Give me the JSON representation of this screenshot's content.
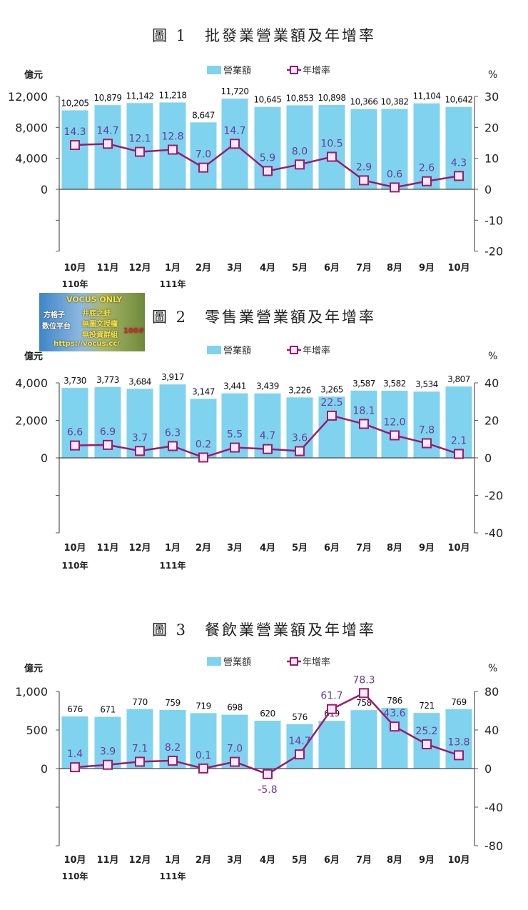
{
  "charts": [
    {
      "title": "圖 1　批發業營業額及年增率",
      "left_unit": "億元",
      "right_unit": "%",
      "legend": {
        "bar": "營業額",
        "line": "年增率"
      },
      "left_ticks": [
        "12,000",
        "8,000",
        "4,000",
        "0"
      ],
      "right_ticks": [
        "30",
        "20",
        "10",
        "0",
        "-10",
        "-20"
      ]
    },
    {
      "title": "圖 2　零售業營業額及年增率",
      "left_unit": "億元",
      "right_unit": "%",
      "legend": {
        "bar": "營業額",
        "line": "年增率"
      },
      "left_ticks": [
        "4,000",
        "2,000",
        "0"
      ],
      "right_ticks": [
        "40",
        "20",
        "0",
        "-20",
        "-40"
      ]
    },
    {
      "title": "圖 3　餐飲業營業額及年增率",
      "left_unit": "億元",
      "right_unit": "%",
      "legend": {
        "bar": "營業額",
        "line": "年增率"
      },
      "left_ticks": [
        "1,000",
        "500",
        "0"
      ],
      "right_ticks": [
        "80",
        "40",
        "0",
        "-40",
        "-80"
      ]
    }
  ],
  "watermark": {
    "lines": [
      "VOCUS ONLY",
      "井底之蛙",
      "無圖文授權",
      "無投資群組",
      "https://vocus.cc/",
      "方格子",
      "数位平台",
      "100#"
    ]
  },
  "colors": {
    "bar": "#7fd3ee",
    "line": "#9b1b6e",
    "marker_fill": "#fde8f3",
    "line_label": "#6a3d9a",
    "axis": "#555555"
  },
  "chart_data": [
    {
      "type": "bar",
      "title": "圖 1 批發業營業額及年增率",
      "categories": [
        "10月",
        "11月",
        "12月",
        "1月",
        "2月",
        "3月",
        "4月",
        "5月",
        "6月",
        "7月",
        "8月",
        "9月",
        "10月"
      ],
      "year_labels": [
        {
          "index": 0,
          "label": "110年"
        },
        {
          "index": 3,
          "label": "111年"
        }
      ],
      "series": [
        {
          "name": "營業額",
          "type": "bar",
          "axis": "left",
          "unit": "億元",
          "values": [
            10205,
            10879,
            11142,
            11218,
            8647,
            11720,
            10645,
            10853,
            10898,
            10366,
            10382,
            11104,
            10642
          ],
          "labels": [
            "10,205",
            "10,879",
            "11,142",
            "11,218",
            "8,647",
            "11,720",
            "10,645",
            "10,853",
            "10,898",
            "10,366",
            "10,382",
            "11,104",
            "10,642"
          ]
        },
        {
          "name": "年增率",
          "type": "line",
          "axis": "right",
          "unit": "%",
          "values": [
            14.3,
            14.7,
            12.1,
            12.8,
            7.0,
            14.7,
            5.9,
            8.0,
            10.5,
            2.9,
            0.6,
            2.6,
            4.3
          ],
          "labels": [
            "14.3",
            "14.7",
            "12.1",
            "12.8",
            "7.0",
            "14.7",
            "5.9",
            "8.0",
            "10.5",
            "2.9",
            "0.6",
            "2.6",
            "4.3"
          ]
        }
      ],
      "ylabel": "億元",
      "y2label": "%",
      "ylim": [
        -8000,
        12000
      ],
      "y2lim": [
        -20,
        30
      ],
      "left_ticks": [
        0,
        4000,
        8000,
        12000
      ],
      "right_ticks": [
        -20,
        -10,
        0,
        10,
        20,
        30
      ],
      "grid": false,
      "legend_position": "top"
    },
    {
      "type": "bar",
      "title": "圖 2 零售業營業額及年增率",
      "categories": [
        "10月",
        "11月",
        "12月",
        "1月",
        "2月",
        "3月",
        "4月",
        "5月",
        "6月",
        "7月",
        "8月",
        "9月",
        "10月"
      ],
      "year_labels": [
        {
          "index": 0,
          "label": "110年"
        },
        {
          "index": 3,
          "label": "111年"
        }
      ],
      "series": [
        {
          "name": "營業額",
          "type": "bar",
          "axis": "left",
          "unit": "億元",
          "values": [
            3730,
            3773,
            3684,
            3917,
            3147,
            3441,
            3439,
            3226,
            3265,
            3587,
            3582,
            3534,
            3807
          ],
          "labels": [
            "3,730",
            "3,773",
            "3,684",
            "3,917",
            "3,147",
            "3,441",
            "3,439",
            "3,226",
            "3,265",
            "3,587",
            "3,582",
            "3,534",
            "3,807"
          ]
        },
        {
          "name": "年增率",
          "type": "line",
          "axis": "right",
          "unit": "%",
          "values": [
            6.6,
            6.9,
            3.7,
            6.3,
            0.2,
            5.5,
            4.7,
            3.6,
            22.5,
            18.1,
            12.0,
            7.8,
            2.1
          ],
          "labels": [
            "6.6",
            "6.9",
            "3.7",
            "6.3",
            "0.2",
            "5.5",
            "4.7",
            "3.6",
            "22.5",
            "18.1",
            "12.0",
            "7.8",
            "2.1"
          ]
        }
      ],
      "ylabel": "億元",
      "y2label": "%",
      "ylim": [
        -4000,
        4000
      ],
      "y2lim": [
        -40,
        40
      ],
      "left_ticks": [
        0,
        2000,
        4000
      ],
      "right_ticks": [
        -40,
        -20,
        0,
        20,
        40
      ],
      "grid": false,
      "legend_position": "top"
    },
    {
      "type": "bar",
      "title": "圖 3 餐飲業營業額及年增率",
      "categories": [
        "10月",
        "11月",
        "12月",
        "1月",
        "2月",
        "3月",
        "4月",
        "5月",
        "6月",
        "7月",
        "8月",
        "9月",
        "10月"
      ],
      "year_labels": [
        {
          "index": 0,
          "label": "110年"
        },
        {
          "index": 3,
          "label": "111年"
        }
      ],
      "series": [
        {
          "name": "營業額",
          "type": "bar",
          "axis": "left",
          "unit": "億元",
          "values": [
            676,
            671,
            770,
            759,
            719,
            698,
            620,
            576,
            619,
            758,
            786,
            721,
            769
          ],
          "labels": [
            "676",
            "671",
            "770",
            "759",
            "719",
            "698",
            "620",
            "576",
            "619",
            "758",
            "786",
            "721",
            "769"
          ]
        },
        {
          "name": "年增率",
          "type": "line",
          "axis": "right",
          "unit": "%",
          "values": [
            1.4,
            3.9,
            7.1,
            8.2,
            0.1,
            7.0,
            -5.8,
            14.7,
            61.7,
            78.3,
            43.6,
            25.2,
            13.8
          ],
          "labels": [
            "1.4",
            "3.9",
            "7.1",
            "8.2",
            "0.1",
            "7.0",
            "-5.8",
            "14.7",
            "61.7",
            "78.3",
            "43.6",
            "25.2",
            "13.8"
          ]
        }
      ],
      "ylabel": "億元",
      "y2label": "%",
      "ylim": [
        -1000,
        1000
      ],
      "y2lim": [
        -80,
        80
      ],
      "left_ticks": [
        0,
        500,
        1000
      ],
      "right_ticks": [
        -80,
        -40,
        0,
        40,
        80
      ],
      "grid": false,
      "legend_position": "top"
    }
  ]
}
